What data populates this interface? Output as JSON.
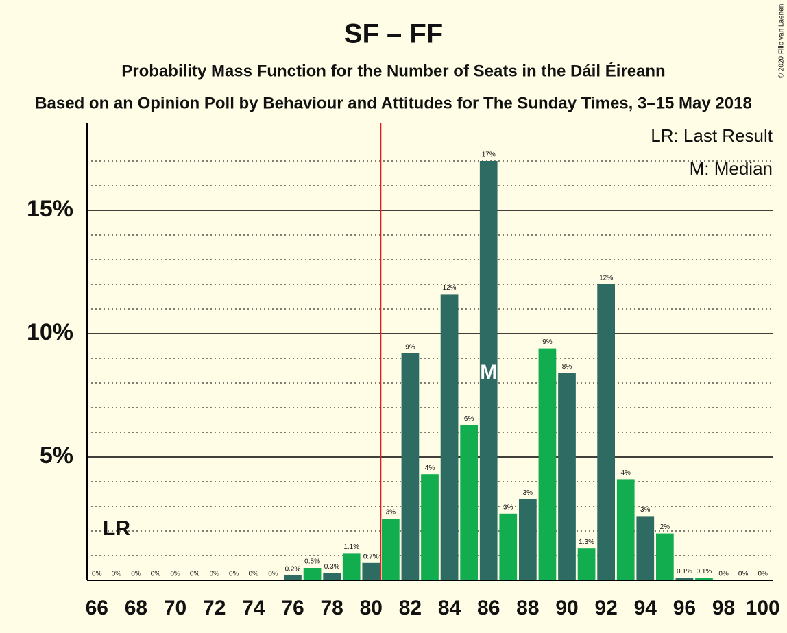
{
  "chart_data": {
    "type": "bar",
    "title": "SF – FF",
    "subtitle": "Probability Mass Function for the Number of Seats in the Dáil Éireann",
    "subtitle2": "Based on an Opinion Poll by Behaviour and Attitudes for The Sunday Times, 3–15 May 2018",
    "copyright": "© 2020 Filip van Laenen",
    "x": [
      66,
      67,
      68,
      69,
      70,
      71,
      72,
      73,
      74,
      75,
      76,
      77,
      78,
      79,
      80,
      81,
      82,
      83,
      84,
      85,
      86,
      87,
      88,
      89,
      90,
      91,
      92,
      93,
      94,
      95,
      96,
      97,
      98,
      99,
      100
    ],
    "values": [
      0,
      0,
      0,
      0,
      0,
      0,
      0,
      0,
      0,
      0,
      0.2,
      0.5,
      0.3,
      1.1,
      0.7,
      2.5,
      9.2,
      4.3,
      11.6,
      6.3,
      17,
      2.7,
      3.3,
      9.4,
      8.4,
      1.3,
      12,
      4.1,
      2.6,
      1.9,
      0.1,
      0.1,
      0,
      0,
      0
    ],
    "value_labels": [
      "0%",
      "0%",
      "0%",
      "0%",
      "0%",
      "0%",
      "0%",
      "0%",
      "0%",
      "0%",
      "0.2%",
      "0.5%",
      "0.3%",
      "1.1%",
      "0.7%",
      "3%",
      "9%",
      "4%",
      "12%",
      "6%",
      "17%",
      "3%",
      "3%",
      "9%",
      "8%",
      "1.3%",
      "12%",
      "4%",
      "3%",
      "2%",
      "0.1%",
      "0.1%",
      "0%",
      "0%",
      "0%"
    ],
    "colors": [
      "#2e6b62",
      "#12ad4f"
    ],
    "xlim": [
      65.5,
      100.5
    ],
    "xticks": [
      66,
      68,
      70,
      72,
      74,
      76,
      78,
      80,
      82,
      84,
      86,
      88,
      90,
      92,
      94,
      96,
      98,
      100
    ],
    "ylim": [
      0,
      18.4
    ],
    "yticks": [
      {
        "value": 5,
        "label": "5%"
      },
      {
        "value": 10,
        "label": "10%"
      },
      {
        "value": 15,
        "label": "15%"
      }
    ],
    "minor_yticks": [
      1,
      2,
      3,
      4,
      6,
      7,
      8,
      9,
      11,
      12,
      13,
      14,
      16,
      17
    ],
    "threshold_x": 80.5,
    "threshold_color": "#e0201b",
    "last_result_label": "LR",
    "median": 86,
    "median_label": "M",
    "legend": [
      "LR: Last Result",
      "M: Median"
    ]
  }
}
